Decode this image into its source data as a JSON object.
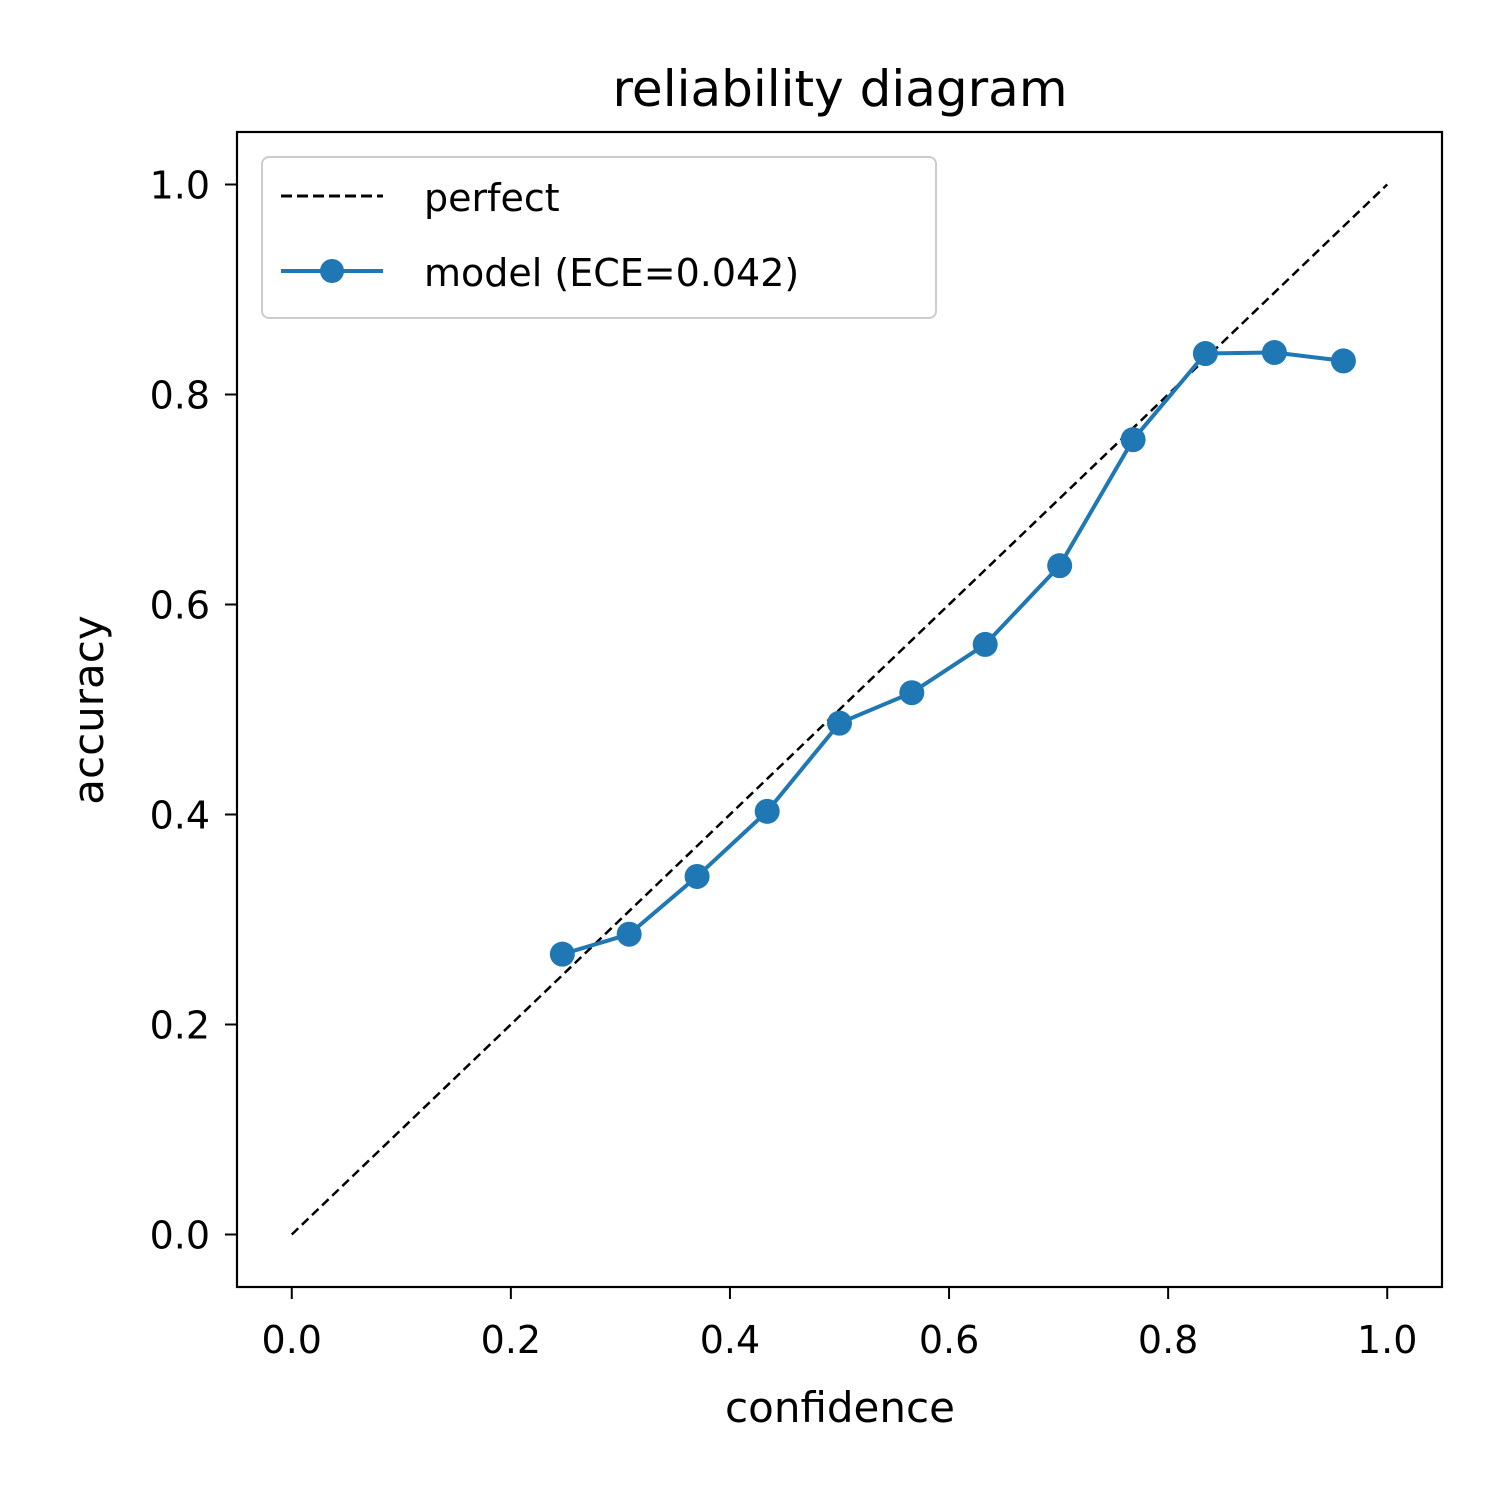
{
  "colors": {
    "model": "#1f77b4",
    "perfect": "#000000",
    "legend_border": "#cccccc"
  },
  "chart_data": {
    "type": "line",
    "title": "reliability diagram",
    "xlabel": "confidence",
    "ylabel": "accuracy",
    "xlim": [
      -0.05,
      1.05
    ],
    "ylim": [
      -0.05,
      1.05
    ],
    "xticks": [
      0.0,
      0.2,
      0.4,
      0.6,
      0.8,
      1.0
    ],
    "xtick_labels": [
      "0.0",
      "0.2",
      "0.4",
      "0.6",
      "0.8",
      "1.0"
    ],
    "yticks": [
      0.0,
      0.2,
      0.4,
      0.6,
      0.8,
      1.0
    ],
    "ytick_labels": [
      "0.0",
      "0.2",
      "0.4",
      "0.6",
      "0.8",
      "1.0"
    ],
    "grid": false,
    "legend_position": "top-left",
    "series": [
      {
        "name": "perfect",
        "style": "dashed",
        "marker": "none",
        "x": [
          0.0,
          1.0
        ],
        "y": [
          0.0,
          1.0
        ]
      },
      {
        "name": "model (ECE=0.042)",
        "style": "solid",
        "marker": "circle",
        "x": [
          0.247,
          0.308,
          0.37,
          0.434,
          0.5,
          0.566,
          0.633,
          0.701,
          0.768,
          0.834,
          0.897,
          0.96
        ],
        "y": [
          0.267,
          0.286,
          0.341,
          0.403,
          0.487,
          0.516,
          0.562,
          0.637,
          0.757,
          0.839,
          0.84,
          0.832
        ]
      }
    ]
  }
}
